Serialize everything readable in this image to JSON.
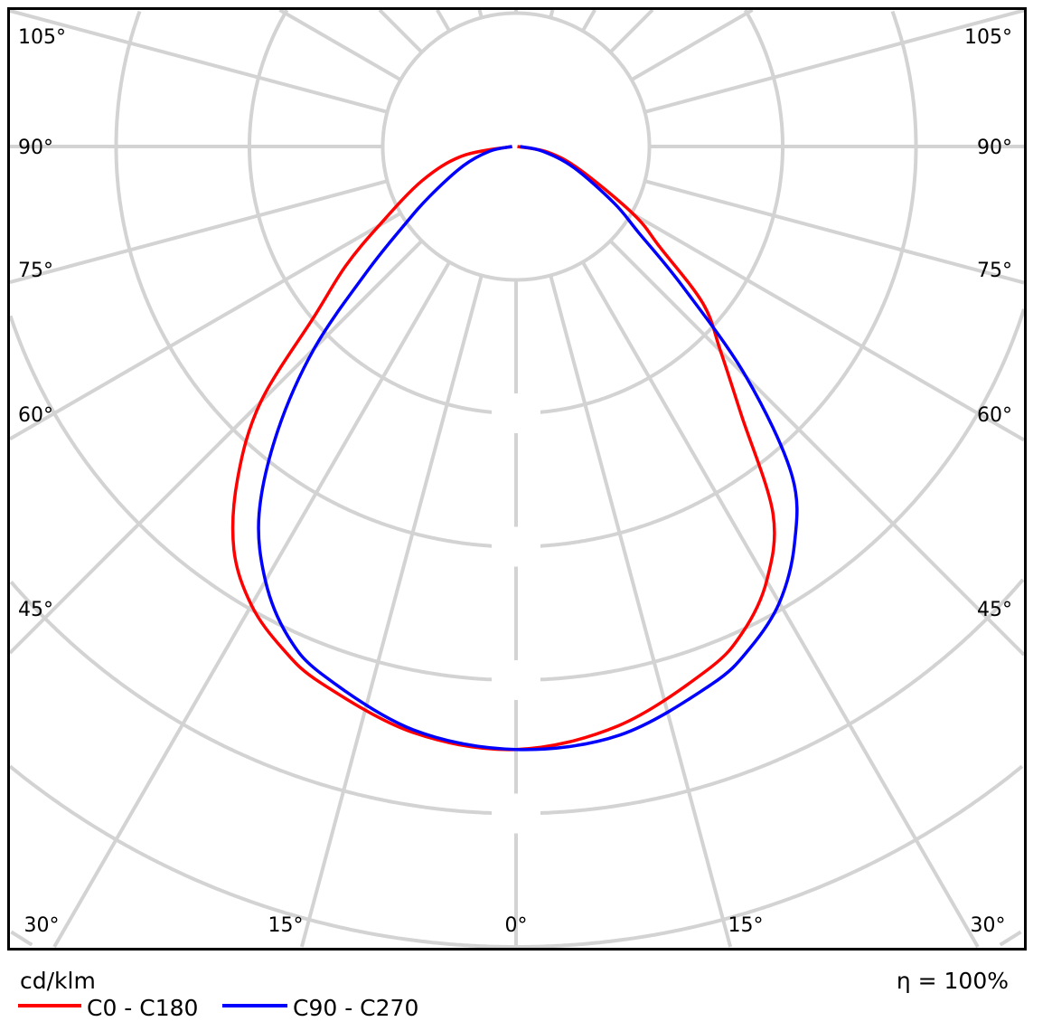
{
  "chart_data": {
    "type": "polar-line",
    "unit_label": "cd/klm",
    "efficiency_label": "η = 100%",
    "angle_labels": {
      "left": [
        "105°",
        "90°",
        "75°",
        "60°",
        "45°"
      ],
      "right": [
        "105°",
        "90°",
        "75°",
        "60°",
        "45°"
      ],
      "bottom": [
        "30°",
        "15°",
        "0°",
        "15°",
        "30°"
      ]
    },
    "angle_step_deg": 15,
    "grid": true,
    "ring_labels_shown": false,
    "gamma_deg": [
      0,
      10,
      20,
      25,
      30,
      35,
      40,
      45,
      50,
      55,
      60,
      70,
      80,
      90
    ],
    "series": [
      {
        "name": "C0 - C180",
        "color": "#ff0000",
        "C0": [
          4.52,
          4.41,
          4.18,
          4.02,
          3.76,
          3.36,
          2.63,
          2.17,
          1.83,
          1.32,
          1.02,
          0.51,
          0.24,
          0.01
        ],
        "C180": [
          4.52,
          4.46,
          4.28,
          4.15,
          3.97,
          3.69,
          3.25,
          2.71,
          1.97,
          1.56,
          1.19,
          0.75,
          0.41,
          0.03
        ]
      },
      {
        "name": "C90 - C270",
        "color": "#0000ff",
        "C90": [
          4.52,
          4.48,
          4.29,
          4.15,
          3.95,
          3.64,
          3.22,
          2.44,
          1.63,
          1.12,
          0.85,
          0.46,
          0.2,
          0.03
        ],
        "C270": [
          4.52,
          4.44,
          4.22,
          4.05,
          3.76,
          3.36,
          2.78,
          2.14,
          1.46,
          1.02,
          0.75,
          0.42,
          0.2,
          0.03
        ]
      }
    ],
    "grid_color": "#d3d3d3",
    "legend_position": "bottom-left"
  }
}
